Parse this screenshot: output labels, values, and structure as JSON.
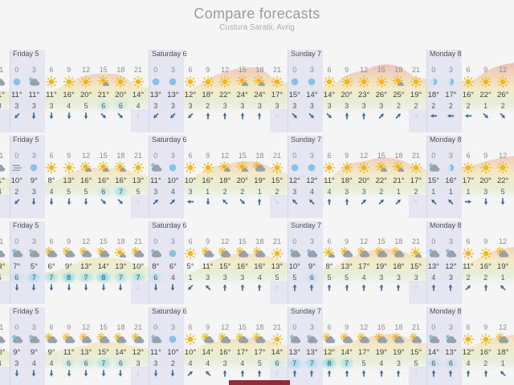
{
  "header": {
    "title": "Compare forecasts",
    "subtitle": "Custura Saratii, Avrig"
  },
  "hours": [
    "0",
    "3",
    "6",
    "9",
    "12",
    "15",
    "18",
    "21"
  ],
  "days": [
    "Friday 5",
    "Saturday 6",
    "Sunday 7",
    "Monday 8"
  ],
  "colors": {
    "band": "#e3e4f1",
    "arrow": "#3a6b9c",
    "wind_highlight": "#56d0f2",
    "wave_hot": "#e06e78",
    "wave_warm": "#ebaa73",
    "wave_mild": "#eedc87",
    "wave_cool": "#cde1a0",
    "scrollbar": "#8e2c38",
    "sun": "#f6b60d",
    "moon": "#87c1e8",
    "cloud": "#98a0aa"
  },
  "rows": [
    {
      "prev": {
        "hour": "21",
        "icon": "cloud-sun",
        "temp": "11°",
        "wind": 3,
        "arrow": 180
      },
      "days": [
        {
          "icons": [
            "moon",
            "cloud-moon",
            "sun",
            "sun",
            "sun",
            "sun-cloud",
            "sun",
            "sun"
          ],
          "temps": [
            "11°",
            "11°",
            "11°",
            "16°",
            "20°",
            "21°",
            "20°",
            "14°"
          ],
          "winds": [
            3,
            3,
            3,
            4,
            5,
            6,
            6,
            4
          ],
          "arrows": [
            225,
            180,
            180,
            180,
            180,
            135,
            135,
            180
          ]
        },
        {
          "icons": [
            "moon",
            "moon",
            "sun",
            "sun",
            "sun",
            "sun-cloud",
            "sun-cloud",
            "sun"
          ],
          "temps": [
            "13°",
            "13°",
            "12°",
            "18°",
            "22°",
            "24°",
            "24°",
            "17°"
          ],
          "winds": [
            3,
            3,
            3,
            2,
            3,
            3,
            3,
            3
          ],
          "arrows": [
            225,
            225,
            225,
            0,
            0,
            0,
            0,
            45
          ]
        },
        {
          "icons": [
            "moon",
            "moon",
            "sun",
            "sun",
            "sun",
            "sun",
            "sun-cloud",
            "sun"
          ],
          "temps": [
            "15°",
            "14°",
            "14°",
            "20°",
            "23°",
            "26°",
            "25°",
            "19°"
          ],
          "winds": [
            3,
            3,
            3,
            3,
            3,
            3,
            2,
            2
          ],
          "arrows": [
            135,
            135,
            135,
            0,
            0,
            45,
            45,
            45
          ]
        },
        {
          "icons": [
            "halfmoon",
            "halfmoon",
            "sun",
            "sun",
            "sun"
          ],
          "temps": [
            "18°",
            "17°",
            "16°",
            "22°",
            "26°"
          ],
          "winds": [
            2,
            2,
            2,
            1,
            2
          ],
          "arrows": [
            270,
            270,
            270,
            135,
            135
          ]
        }
      ]
    },
    {
      "prev": {
        "hour": "21",
        "icon": "cloud-sun",
        "temp": "11°",
        "wind": 4,
        "arrow": 180
      },
      "days": [
        {
          "icons": [
            "fog",
            "moon",
            "sun",
            "sun",
            "sun-cloud",
            "sun-cloud",
            "sun-cloud",
            "sun"
          ],
          "temps": [
            "10°",
            "9°",
            "8°",
            "13°",
            "16°",
            "16°",
            "16°",
            "13°"
          ],
          "winds": [
            2,
            3,
            4,
            5,
            5,
            6,
            7,
            5
          ],
          "arrows": [
            225,
            180,
            180,
            180,
            180,
            135,
            135,
            180
          ]
        },
        {
          "icons": [
            "cloud-moon",
            "moon",
            "sun",
            "sun",
            "sun-cloud",
            "sun-cloud",
            "cloud-sun",
            "sun"
          ],
          "temps": [
            "11°",
            "10°",
            "10°",
            "16°",
            "18°",
            "20°",
            "19°",
            "15°"
          ],
          "winds": [
            3,
            4,
            3,
            1,
            2,
            2,
            1,
            2
          ],
          "arrows": [
            45,
            45,
            270,
            180,
            315,
            135,
            0,
            135
          ]
        },
        {
          "icons": [
            "moon",
            "moon",
            "sun",
            "sun",
            "sun",
            "sun-cloud",
            "sun-cloud",
            "sun"
          ],
          "temps": [
            "12°",
            "12°",
            "11°",
            "18°",
            "20°",
            "22°",
            "21°",
            "17°"
          ],
          "winds": [
            3,
            4,
            4,
            3,
            3,
            2,
            1,
            2
          ],
          "arrows": [
            315,
            315,
            0,
            0,
            45,
            45,
            45,
            315
          ]
        },
        {
          "icons": [
            "cloud-moon",
            "halfmoon",
            "sun",
            "sun",
            "sun"
          ],
          "temps": [
            "15°",
            "16°",
            "17°",
            "20°",
            "22°"
          ],
          "winds": [
            1,
            1,
            1,
            3,
            5
          ],
          "arrows": [
            315,
            315,
            90,
            180,
            180
          ]
        }
      ]
    },
    {
      "prev": {
        "hour": "21",
        "icon": "cloud-sun",
        "temp": "13°",
        "wind": 5,
        "arrow": 180
      },
      "days": [
        {
          "icons": [
            "cloud-moon",
            "cloud-moon",
            "cloud-sun",
            "cloud-sun",
            "cloud-sun",
            "cloud-sun",
            "sun-cloud",
            "cloud-sun"
          ],
          "temps": [
            "7°",
            "5°",
            "6°",
            "9°",
            "13°",
            "14°",
            "13°",
            "10°"
          ],
          "winds": [
            6,
            7,
            7,
            8,
            7,
            8,
            7,
            7
          ],
          "arrows": [
            180,
            180,
            180,
            180,
            180,
            180,
            180,
            180
          ]
        },
        {
          "icons": [
            "cloud-moon",
            "moon",
            "sun",
            "cloud-sun",
            "cloud-sun",
            "cloud-sun",
            "cloud-sun",
            "sun"
          ],
          "temps": [
            "8°",
            "6°",
            "5°",
            "11°",
            "15°",
            "16°",
            "16°",
            "13°"
          ],
          "winds": [
            6,
            4,
            1,
            3,
            3,
            3,
            4,
            5
          ],
          "arrows": [
            180,
            180,
            225,
            315,
            0,
            0,
            0,
            0
          ]
        },
        {
          "icons": [
            "cloud-moon",
            "cloud-moon",
            "sun-cloud",
            "cloud-sun",
            "cloud-sun",
            "cloud-sun",
            "cloud-sun",
            "sun-cloud"
          ],
          "temps": [
            "10°",
            "9°",
            "8°",
            "13°",
            "17°",
            "19°",
            "18°",
            "15°"
          ],
          "winds": [
            5,
            6,
            5,
            5,
            4,
            3,
            3,
            3
          ],
          "arrows": [
            0,
            0,
            0,
            0,
            0,
            0,
            0,
            0
          ]
        },
        {
          "icons": [
            "cloud-moon",
            "cloud-moon",
            "sun",
            "sun",
            "cloud-sun"
          ],
          "temps": [
            "13°",
            "12°",
            "11°",
            "16°",
            "19°"
          ],
          "winds": [
            4,
            3,
            2,
            2,
            1
          ],
          "arrows": [
            0,
            0,
            45,
            0,
            315
          ]
        }
      ]
    },
    {
      "prev": {
        "hour": "21",
        "icon": "cloud-sun",
        "temp": "10°",
        "wind": 4,
        "arrow": 180
      },
      "days": [
        {
          "icons": [
            "cloud-moon",
            "cloud-moon",
            "cloud-sun",
            "cloud-sun",
            "cloud-sun",
            "cloud-sun",
            "cloud-sun",
            "cloud-sun"
          ],
          "temps": [
            "9°",
            "9°",
            "9°",
            "11°",
            "13°",
            "15°",
            "14°",
            "12°"
          ],
          "winds": [
            3,
            4,
            4,
            6,
            6,
            7,
            6,
            3
          ],
          "arrows": [
            180,
            180,
            180,
            180,
            180,
            180,
            180,
            180
          ]
        },
        {
          "icons": [
            "cloud-moon",
            "moon",
            "sun",
            "cloud-sun",
            "cloud-sun",
            "cloud-sun",
            "cloud-sun",
            "sun"
          ],
          "temps": [
            "11°",
            "10°",
            "10°",
            "14°",
            "16°",
            "17°",
            "17°",
            "14°"
          ],
          "winds": [
            3,
            2,
            4,
            4,
            3,
            4,
            5,
            6
          ],
          "arrows": [
            180,
            180,
            45,
            315,
            0,
            0,
            0,
            0
          ]
        },
        {
          "icons": [
            "cloud-moon",
            "cloud-moon",
            "cloud-sun",
            "cloud-sun",
            "cloud-sun",
            "cloud-sun",
            "cloud-sun",
            "cloud-sun"
          ],
          "temps": [
            "13°",
            "13°",
            "12°",
            "14°",
            "17°",
            "19°",
            "19°",
            "15°"
          ],
          "winds": [
            7,
            7,
            8,
            7,
            5,
            4,
            3,
            5
          ],
          "arrows": [
            0,
            0,
            0,
            0,
            0,
            0,
            0,
            0
          ]
        },
        {
          "icons": [
            "cloud-moon",
            "cloud-moon",
            "sun",
            "sun",
            "cloud-sun"
          ],
          "temps": [
            "14°",
            "13°",
            "12°",
            "16°",
            "18°"
          ],
          "winds": [
            6,
            6,
            4,
            2,
            1
          ],
          "arrows": [
            0,
            0,
            0,
            0,
            315
          ]
        }
      ]
    }
  ]
}
